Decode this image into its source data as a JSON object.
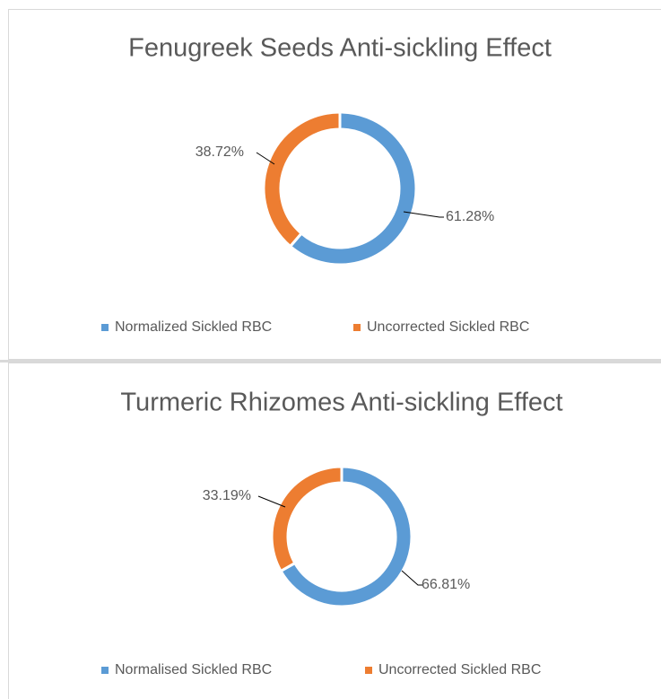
{
  "chart_data": [
    {
      "type": "donut",
      "title": "Fenugreek Seeds Anti-sickling Effect",
      "categories": [
        "Normalized Sickled RBC",
        "Uncorrected Sickled RBC"
      ],
      "values": [
        61.28,
        38.72
      ],
      "value_labels": [
        "61.28%",
        "38.72%"
      ],
      "colors": [
        "#5b9bd5",
        "#ed7d31"
      ],
      "legend": "bottom"
    },
    {
      "type": "donut",
      "title": "Turmeric Rhizomes Anti-sickling Effect",
      "categories": [
        "Normalised Sickled RBC",
        "Uncorrected Sickled RBC"
      ],
      "values": [
        66.81,
        33.19
      ],
      "value_labels": [
        "66.81%",
        "33.19%"
      ],
      "colors": [
        "#5b9bd5",
        "#ed7d31"
      ],
      "legend": "bottom"
    }
  ]
}
